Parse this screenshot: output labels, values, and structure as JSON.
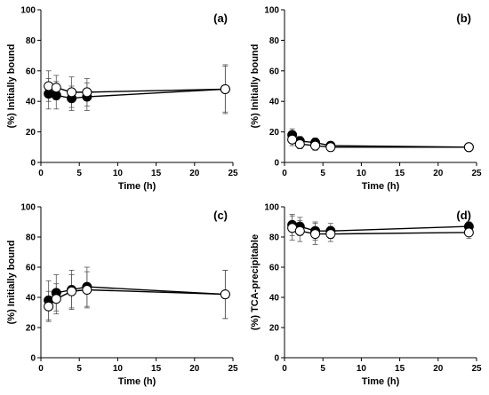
{
  "chart_data": [
    {
      "type": "line",
      "label": "(a)",
      "xlabel": "Time (h)",
      "ylabel": "(%) Initially bound",
      "xlim": [
        0,
        25
      ],
      "ylim": [
        0,
        100
      ],
      "xticks": [
        0,
        5,
        10,
        15,
        20,
        25
      ],
      "yticks": [
        0,
        20,
        40,
        60,
        80,
        100
      ],
      "series": [
        {
          "marker": "filled",
          "x": [
            1,
            2,
            4,
            6,
            24
          ],
          "y": [
            45,
            44,
            42,
            43,
            48
          ],
          "err": [
            10,
            9,
            8,
            9,
            15
          ]
        },
        {
          "marker": "open",
          "x": [
            1,
            2,
            4,
            6,
            24
          ],
          "y": [
            50,
            49,
            46,
            46,
            48
          ],
          "err": [
            10,
            8,
            10,
            9,
            16
          ]
        }
      ]
    },
    {
      "type": "line",
      "label": "(b)",
      "xlabel": "Time (h)",
      "ylabel": "(%) Initially bound",
      "xlim": [
        0,
        25
      ],
      "ylim": [
        0,
        100
      ],
      "xticks": [
        0,
        5,
        10,
        15,
        20,
        25
      ],
      "yticks": [
        0,
        20,
        40,
        60,
        80,
        100
      ],
      "series": [
        {
          "marker": "filled",
          "x": [
            1,
            2,
            4,
            6,
            24
          ],
          "y": [
            18,
            14,
            13,
            11,
            10
          ],
          "err": [
            4,
            3,
            3,
            2,
            1
          ]
        },
        {
          "marker": "open",
          "x": [
            1,
            2,
            4,
            6,
            24
          ],
          "y": [
            15,
            12,
            11,
            10,
            10
          ],
          "err": [
            4,
            3,
            3,
            2,
            1
          ]
        }
      ]
    },
    {
      "type": "line",
      "label": "(c)",
      "xlabel": "Time (h)",
      "ylabel": "(%) Initially bound",
      "xlim": [
        0,
        25
      ],
      "ylim": [
        0,
        100
      ],
      "xticks": [
        0,
        5,
        10,
        15,
        20,
        25
      ],
      "yticks": [
        0,
        20,
        40,
        60,
        80,
        100
      ],
      "series": [
        {
          "marker": "filled",
          "x": [
            1,
            2,
            4,
            6,
            24
          ],
          "y": [
            38,
            43,
            45,
            47,
            42
          ],
          "err": [
            13,
            12,
            13,
            13,
            16
          ]
        },
        {
          "marker": "open",
          "x": [
            1,
            2,
            4,
            6,
            24
          ],
          "y": [
            34,
            39,
            44,
            45,
            42
          ],
          "err": [
            10,
            10,
            11,
            12,
            16
          ]
        }
      ]
    },
    {
      "type": "line",
      "label": "(d)",
      "xlabel": "Time (h)",
      "ylabel": "(%) TCA-precipitable",
      "xlim": [
        0,
        25
      ],
      "ylim": [
        0,
        100
      ],
      "xticks": [
        0,
        5,
        10,
        15,
        20,
        25
      ],
      "yticks": [
        0,
        20,
        40,
        60,
        80,
        100
      ],
      "series": [
        {
          "marker": "filled",
          "x": [
            1,
            2,
            4,
            6,
            24
          ],
          "y": [
            88,
            87,
            84,
            84,
            87
          ],
          "err": [
            7,
            6,
            6,
            5,
            3
          ]
        },
        {
          "marker": "open",
          "x": [
            1,
            2,
            4,
            6,
            24
          ],
          "y": [
            86,
            84,
            82,
            82,
            83
          ],
          "err": [
            8,
            7,
            7,
            5,
            4
          ]
        }
      ]
    }
  ]
}
